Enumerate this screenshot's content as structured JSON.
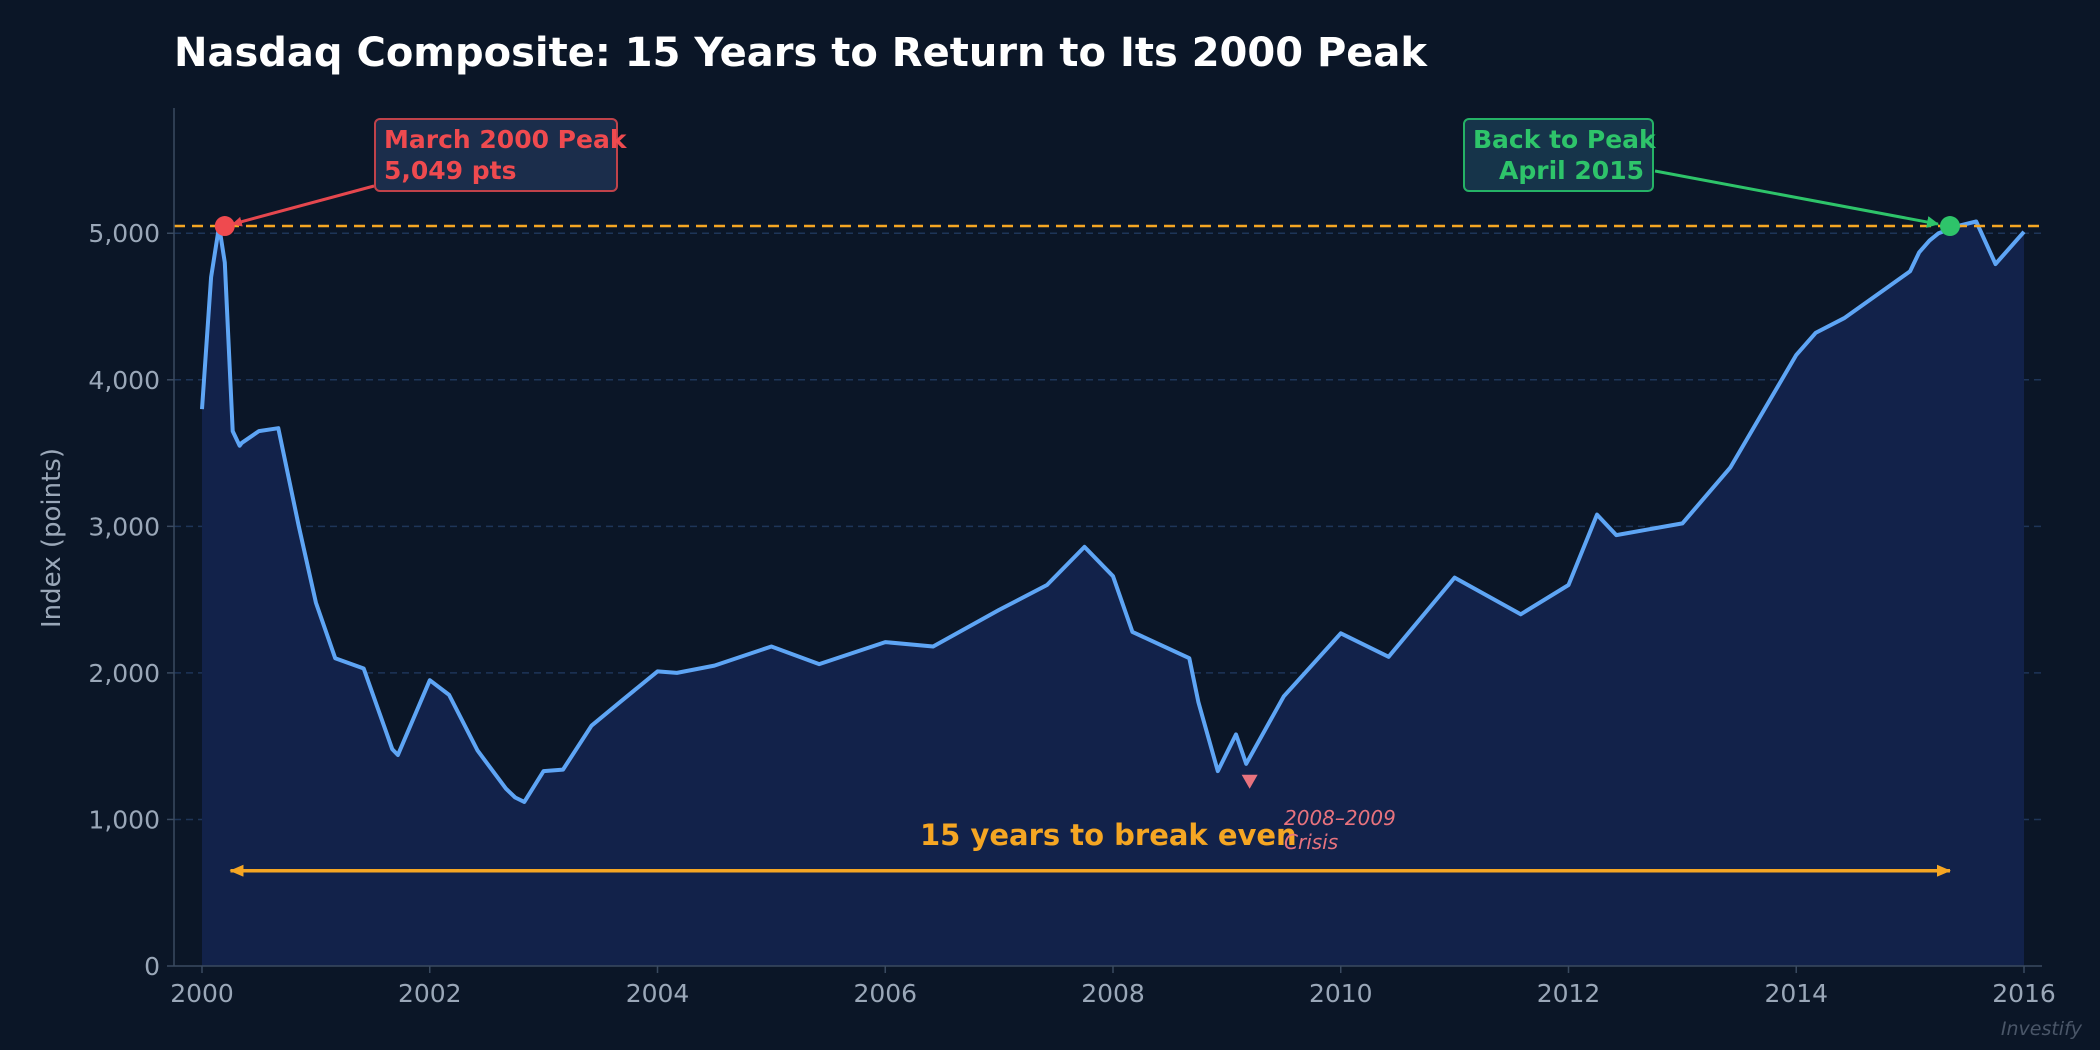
{
  "chart_data": {
    "type": "area",
    "title": "Nasdaq Composite: 15 Years to Return to Its 2000 Peak",
    "ylabel": "Index (points)",
    "xlabel": "",
    "xlim": [
      2000,
      2016
    ],
    "ylim": [
      0,
      5800
    ],
    "x_ticks": [
      2000,
      2002,
      2004,
      2006,
      2008,
      2010,
      2012,
      2014,
      2016
    ],
    "x_tick_labels": [
      "2000",
      "2002",
      "2004",
      "2006",
      "2008",
      "2010",
      "2012",
      "2014",
      "2016"
    ],
    "y_ticks": [
      0,
      1000,
      2000,
      3000,
      4000,
      5000
    ],
    "y_tick_labels": [
      "0",
      "1,000",
      "2,000",
      "3,000",
      "4,000",
      "5,000"
    ],
    "grid": "horizontal dashed",
    "reference_line": {
      "y": 5049,
      "style": "dashed",
      "color": "#f5a623"
    },
    "series": [
      {
        "color": "#5ea5f5",
        "fill": "#12224a",
        "x": [
          2000.0,
          2000.08,
          2000.15,
          2000.2,
          2000.27,
          2000.33,
          2000.35,
          2000.5,
          2000.67,
          2000.85,
          2001.0,
          2001.17,
          2001.42,
          2001.67,
          2001.72,
          2002.0,
          2002.17,
          2002.42,
          2002.67,
          2002.75,
          2002.83,
          2003.0,
          2003.17,
          2003.42,
          2003.67,
          2004.0,
          2004.17,
          2004.5,
          2005.0,
          2005.42,
          2006.0,
          2006.42,
          2007.0,
          2007.42,
          2007.75,
          2008.0,
          2008.17,
          2008.67,
          2008.75,
          2008.92,
          2009.08,
          2009.17,
          2009.5,
          2010.0,
          2010.42,
          2011.0,
          2011.58,
          2012.0,
          2012.25,
          2012.42,
          2013.0,
          2013.42,
          2014.0,
          2014.17,
          2014.42,
          2015.0,
          2015.08,
          2015.17,
          2015.25,
          2015.42,
          2015.58,
          2015.75,
          2016.0
        ],
        "y": [
          3800,
          4700,
          5049,
          4800,
          3650,
          3550,
          3570,
          3650,
          3670,
          3000,
          2480,
          2100,
          2030,
          1480,
          1440,
          1950,
          1850,
          1470,
          1210,
          1150,
          1120,
          1330,
          1340,
          1640,
          1800,
          2010,
          2000,
          2050,
          2180,
          2060,
          2210,
          2180,
          2430,
          2600,
          2860,
          2660,
          2280,
          2100,
          1800,
          1330,
          1580,
          1380,
          1840,
          2270,
          2110,
          2650,
          2400,
          2600,
          3080,
          2940,
          3020,
          3400,
          4170,
          4320,
          4420,
          4740,
          4870,
          4950,
          5000,
          5050,
          5080,
          4790,
          5010
        ]
      }
    ],
    "annotations": [
      {
        "text": [
          "March 2000 Peak",
          "5,049 pts"
        ],
        "x": 2000.2,
        "y": 5049,
        "color": "#ef4a4f"
      },
      {
        "text": [
          "Back to Peak",
          "April 2015"
        ],
        "x": 2015.35,
        "y": 5049,
        "color": "#2ec46a"
      },
      {
        "text": [
          "2008–2009",
          "Crisis"
        ],
        "x": 2009.2,
        "y": 1250,
        "color": "#e8737e"
      },
      {
        "text": "15 years to break even",
        "x_start": 2000.25,
        "x_end": 2015.35,
        "y": 650,
        "color": "#f5a623"
      }
    ],
    "watermark": "Investify"
  }
}
